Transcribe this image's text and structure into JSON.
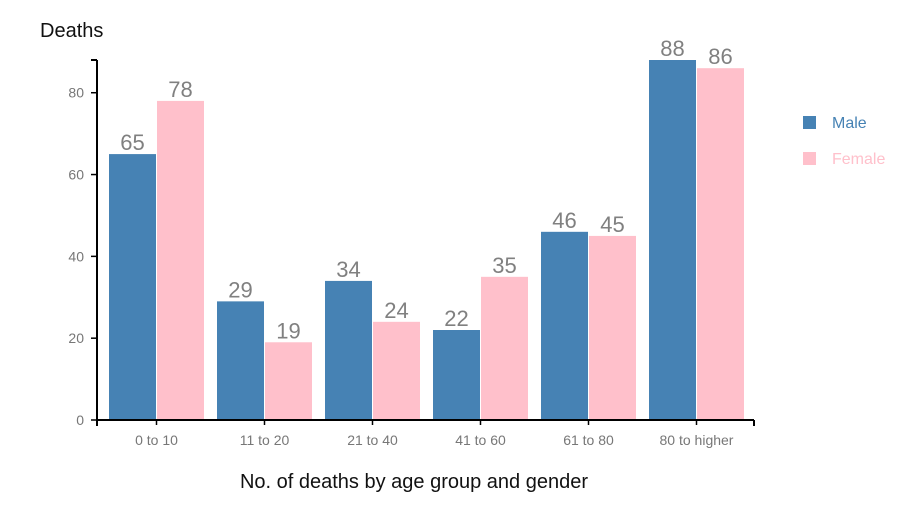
{
  "chart_data": {
    "type": "bar",
    "ylabel": "Deaths",
    "xlabel": "No. of deaths by age group and gender",
    "categories": [
      "0 to 10",
      "11 to 20",
      "21 to 40",
      "41 to 60",
      "61 to 80",
      "80 to higher"
    ],
    "series": [
      {
        "name": "Male",
        "color": "#4682b4",
        "values": [
          65,
          29,
          34,
          22,
          46,
          88
        ]
      },
      {
        "name": "Female",
        "color": "#ffc0cb",
        "values": [
          78,
          19,
          24,
          35,
          45,
          86
        ]
      }
    ],
    "ylim": [
      0,
      88
    ],
    "yticks": [
      0,
      20,
      40,
      60,
      80
    ],
    "grid": false,
    "legend": "right"
  }
}
